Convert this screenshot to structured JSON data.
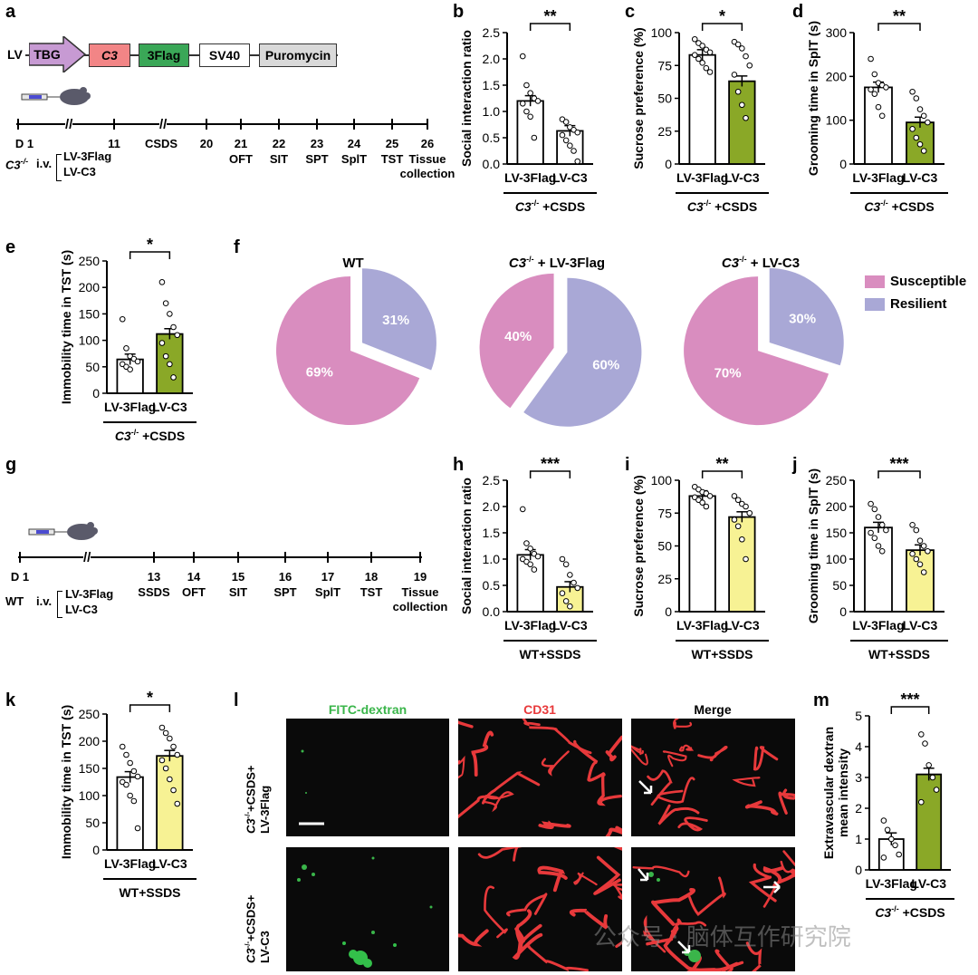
{
  "panels": {
    "a": "a",
    "b": "b",
    "c": "c",
    "d": "d",
    "e": "e",
    "f": "f",
    "g": "g",
    "h": "h",
    "i": "i",
    "j": "j",
    "k": "k",
    "l": "l",
    "m": "m"
  },
  "construct": {
    "lv": "LV",
    "parts": [
      "TBG",
      "C3",
      "3Flag",
      "SV40",
      "Puromycin"
    ]
  },
  "timeline_a": {
    "days": [
      "D 1",
      "11",
      "CSDS",
      "20",
      "21",
      "22",
      "23",
      "24",
      "25",
      "26"
    ],
    "tests": [
      "",
      "",
      "",
      "",
      "OFT",
      "SIT",
      "SPT",
      "SplT",
      "TST",
      "Tissue"
    ],
    "tissue2": "collection",
    "group": "C3-/-",
    "route": "i.v.",
    "arms": [
      "LV-3Flag",
      "LV-C3"
    ]
  },
  "timeline_g": {
    "days": [
      "D 1",
      "13",
      "14",
      "15",
      "16",
      "17",
      "18",
      "19"
    ],
    "tests": [
      "",
      "SSDS",
      "OFT",
      "SIT",
      "SPT",
      "SplT",
      "TST",
      "Tissue"
    ],
    "tissue2": "collection",
    "group": "WT",
    "route": "i.v.",
    "arms": [
      "LV-3Flag",
      "LV-C3"
    ]
  },
  "colors": {
    "flag": "#ffffff",
    "c3_csds": "#8aa827",
    "c3_ssds": "#f7f294",
    "susceptible": "#d98dbf",
    "resilient": "#a9a8d6",
    "red": "#e8393b"
  },
  "pie": {
    "legend": [
      "Susceptible",
      "Resilient"
    ],
    "titles": [
      "WT",
      "C3-/- + LV-3Flag",
      "C3-/- + LV-C3"
    ],
    "charts": [
      {
        "susceptible": 69,
        "resilient": 31,
        "labels": [
          "69%",
          "31%"
        ]
      },
      {
        "susceptible": 40,
        "resilient": 60,
        "labels": [
          "40%",
          "60%"
        ]
      },
      {
        "susceptible": 70,
        "resilient": 30,
        "labels": [
          "70%",
          "30%"
        ]
      }
    ]
  },
  "micro": {
    "cols": [
      "FITC-dextran",
      "CD31",
      "Merge"
    ],
    "rows": [
      {
        "line1": "C3-/-+CSDS+",
        "line2": "LV-3Flag"
      },
      {
        "line1": "C3-/-+CSDS+",
        "line2": "LV-C3"
      }
    ]
  },
  "watermark": "公众号 · 脑体互作研究院",
  "chart_data": [
    {
      "id": "b",
      "type": "bar",
      "categories": [
        "LV-3Flag",
        "LV-C3"
      ],
      "values": [
        1.2,
        0.63
      ],
      "points": [
        [
          2.05,
          1.5,
          1.35,
          1.25,
          1.2,
          1.15,
          1.0,
          0.9,
          0.5
        ],
        [
          0.85,
          0.8,
          0.7,
          0.65,
          0.6,
          0.55,
          0.45,
          0.35,
          0.25,
          0.05
        ]
      ],
      "ylabel": "Social interaction ratio",
      "ylim": [
        0,
        2.5
      ],
      "ticks": [
        "0.0",
        "0.5",
        "1.0",
        "1.5",
        "2.0",
        "2.5"
      ],
      "sig": "**",
      "group": "C3-/- +CSDS"
    },
    {
      "id": "c",
      "type": "bar",
      "categories": [
        "LV-3Flag",
        "LV-C3"
      ],
      "values": [
        83,
        63
      ],
      "points": [
        [
          95,
          92,
          90,
          87,
          85,
          83,
          80,
          77,
          73,
          70
        ],
        [
          93,
          91,
          88,
          82,
          75,
          68,
          55,
          45,
          35
        ]
      ],
      "ylabel": "Sucrose preference (%)",
      "ylim": [
        0,
        100
      ],
      "ticks": [
        "0",
        "25",
        "50",
        "75",
        "100"
      ],
      "sig": "*",
      "group": "C3-/- +CSDS"
    },
    {
      "id": "d",
      "type": "bar",
      "categories": [
        "LV-3Flag",
        "LV-C3"
      ],
      "values": [
        175,
        95
      ],
      "points": [
        [
          240,
          205,
          185,
          180,
          175,
          170,
          160,
          130,
          110
        ],
        [
          165,
          150,
          125,
          110,
          95,
          80,
          60,
          45,
          30
        ]
      ],
      "ylabel": "Grooming time in SplT (s)",
      "ylim": [
        0,
        300
      ],
      "ticks": [
        "0",
        "100",
        "200",
        "300"
      ],
      "sig": "**",
      "group": "C3-/- +CSDS"
    },
    {
      "id": "e",
      "type": "bar",
      "categories": [
        "LV-3Flag",
        "LV-C3"
      ],
      "values": [
        64,
        112
      ],
      "points": [
        [
          140,
          85,
          70,
          65,
          60,
          55,
          50,
          45
        ],
        [
          210,
          170,
          150,
          125,
          110,
          95,
          70,
          55,
          30
        ]
      ],
      "ylabel": "Immobility time in TST (s)",
      "ylim": [
        0,
        250
      ],
      "ticks": [
        "0",
        "50",
        "100",
        "150",
        "200",
        "250"
      ],
      "sig": "*",
      "group": "C3-/- +CSDS"
    },
    {
      "id": "h",
      "type": "bar",
      "categories": [
        "LV-3Flag",
        "LV-C3"
      ],
      "values": [
        1.08,
        0.47
      ],
      "points": [
        [
          1.95,
          1.3,
          1.2,
          1.1,
          1.05,
          1.0,
          0.95,
          0.9,
          0.8
        ],
        [
          1.0,
          0.9,
          0.7,
          0.55,
          0.45,
          0.35,
          0.2,
          0.1
        ]
      ],
      "ylabel": "Social interaction ratio",
      "ylim": [
        0,
        2.5
      ],
      "ticks": [
        "0.0",
        "0.5",
        "1.0",
        "1.5",
        "2.0",
        "2.5"
      ],
      "sig": "***",
      "group": "WT+SSDS"
    },
    {
      "id": "i",
      "type": "bar",
      "categories": [
        "LV-3Flag",
        "LV-C3"
      ],
      "values": [
        88,
        72
      ],
      "points": [
        [
          95,
          93,
          91,
          90,
          88,
          87,
          85,
          83,
          80
        ],
        [
          88,
          85,
          82,
          80,
          75,
          70,
          65,
          55,
          40
        ]
      ],
      "ylabel": "Sucrose preference (%)",
      "ylim": [
        0,
        100
      ],
      "ticks": [
        "0",
        "25",
        "50",
        "75",
        "100"
      ],
      "sig": "**",
      "group": "WT+SSDS"
    },
    {
      "id": "j",
      "type": "bar",
      "categories": [
        "LV-3Flag",
        "LV-C3"
      ],
      "values": [
        160,
        117
      ],
      "points": [
        [
          205,
          195,
          180,
          165,
          155,
          150,
          140,
          125,
          115
        ],
        [
          165,
          155,
          135,
          125,
          115,
          110,
          100,
          90,
          75
        ]
      ],
      "ylabel": "Grooming time in SplT (s)",
      "ylim": [
        0,
        250
      ],
      "ticks": [
        "0",
        "50",
        "100",
        "150",
        "200",
        "250"
      ],
      "sig": "***",
      "group": "WT+SSDS"
    },
    {
      "id": "k",
      "type": "bar",
      "categories": [
        "LV-3Flag",
        "LV-C3"
      ],
      "values": [
        134,
        173
      ],
      "points": [
        [
          190,
          175,
          160,
          145,
          135,
          125,
          120,
          100,
          90,
          40
        ],
        [
          225,
          215,
          205,
          190,
          175,
          165,
          150,
          130,
          110,
          85
        ]
      ],
      "ylabel": "Immobility time in TST (s)",
      "ylim": [
        0,
        250
      ],
      "ticks": [
        "0",
        "50",
        "100",
        "150",
        "200",
        "250"
      ],
      "sig": "*",
      "group": "WT+SSDS"
    },
    {
      "id": "m",
      "type": "bar",
      "categories": [
        "LV-3Flag",
        "LV-C3"
      ],
      "values": [
        1.0,
        3.1
      ],
      "points": [
        [
          1.6,
          1.3,
          1.0,
          0.8,
          0.5,
          0.4
        ],
        [
          4.4,
          4.1,
          3.4,
          3.0,
          2.6,
          2.2
        ]
      ],
      "ylabel": "Extravascular dextran mean intensity",
      "ylim": [
        0,
        5
      ],
      "ticks": [
        "0",
        "1",
        "2",
        "3",
        "4",
        "5"
      ],
      "sig": "***",
      "group": "C3-/- +CSDS"
    }
  ]
}
